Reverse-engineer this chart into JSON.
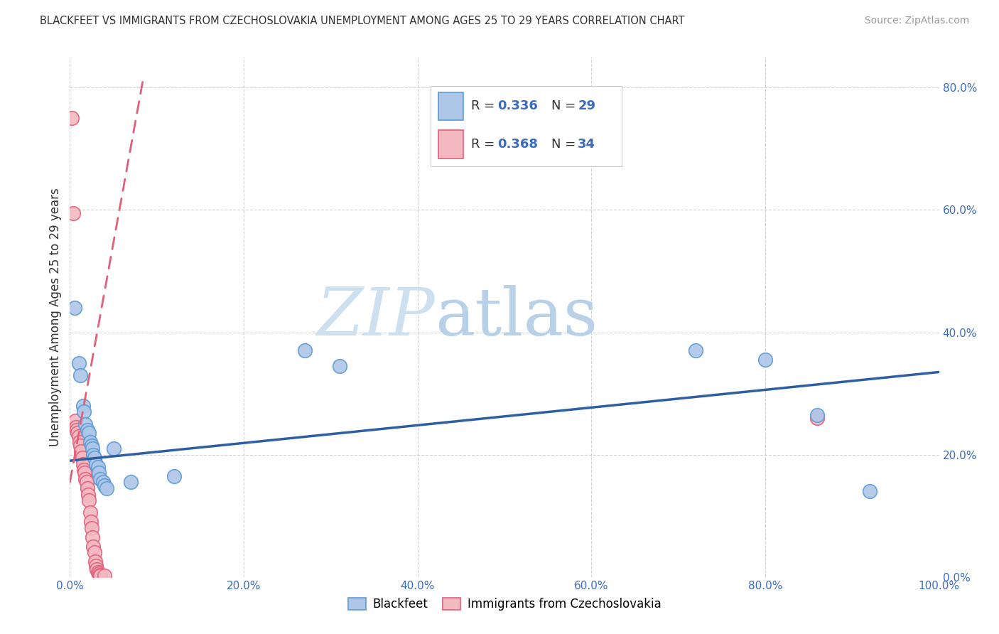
{
  "title": "BLACKFEET VS IMMIGRANTS FROM CZECHOSLOVAKIA UNEMPLOYMENT AMONG AGES 25 TO 29 YEARS CORRELATION CHART",
  "source": "Source: ZipAtlas.com",
  "ylabel": "Unemployment Among Ages 25 to 29 years",
  "xlim": [
    0,
    1.0
  ],
  "ylim": [
    0,
    0.85
  ],
  "xticks": [
    0.0,
    0.2,
    0.4,
    0.6,
    0.8,
    1.0
  ],
  "xticklabels": [
    "0.0%",
    "20.0%",
    "40.0%",
    "60.0%",
    "80.0%",
    "100.0%"
  ],
  "yticks": [
    0.0,
    0.2,
    0.4,
    0.6,
    0.8
  ],
  "yticklabels_right": [
    "0.0%",
    "20.0%",
    "40.0%",
    "60.0%",
    "80.0%"
  ],
  "blackfeet_color": "#aec6e8",
  "blackfeet_edge": "#5b9bd5",
  "czecho_color": "#f4b8c1",
  "czecho_edge": "#e0607a",
  "trendline_blue": "#2e5fa3",
  "trendline_pink": "#e0607a",
  "watermark_zip_color": "#cde0f0",
  "watermark_atlas_color": "#b8d0e8",
  "blackfeet_points": [
    [
      0.005,
      0.44
    ],
    [
      0.01,
      0.35
    ],
    [
      0.012,
      0.33
    ],
    [
      0.015,
      0.28
    ],
    [
      0.016,
      0.27
    ],
    [
      0.018,
      0.25
    ],
    [
      0.02,
      0.24
    ],
    [
      0.022,
      0.235
    ],
    [
      0.023,
      0.22
    ],
    [
      0.025,
      0.215
    ],
    [
      0.026,
      0.21
    ],
    [
      0.027,
      0.2
    ],
    [
      0.028,
      0.195
    ],
    [
      0.03,
      0.185
    ],
    [
      0.032,
      0.18
    ],
    [
      0.033,
      0.17
    ],
    [
      0.035,
      0.16
    ],
    [
      0.038,
      0.155
    ],
    [
      0.04,
      0.15
    ],
    [
      0.042,
      0.145
    ],
    [
      0.05,
      0.21
    ],
    [
      0.07,
      0.155
    ],
    [
      0.12,
      0.165
    ],
    [
      0.27,
      0.37
    ],
    [
      0.31,
      0.345
    ],
    [
      0.72,
      0.37
    ],
    [
      0.8,
      0.355
    ],
    [
      0.86,
      0.265
    ],
    [
      0.92,
      0.14
    ]
  ],
  "czecho_points": [
    [
      0.002,
      0.75
    ],
    [
      0.004,
      0.595
    ],
    [
      0.006,
      0.255
    ],
    [
      0.007,
      0.245
    ],
    [
      0.008,
      0.24
    ],
    [
      0.009,
      0.235
    ],
    [
      0.01,
      0.23
    ],
    [
      0.011,
      0.22
    ],
    [
      0.012,
      0.215
    ],
    [
      0.013,
      0.205
    ],
    [
      0.014,
      0.195
    ],
    [
      0.015,
      0.185
    ],
    [
      0.016,
      0.175
    ],
    [
      0.017,
      0.17
    ],
    [
      0.018,
      0.16
    ],
    [
      0.019,
      0.155
    ],
    [
      0.02,
      0.145
    ],
    [
      0.021,
      0.135
    ],
    [
      0.022,
      0.125
    ],
    [
      0.023,
      0.105
    ],
    [
      0.024,
      0.09
    ],
    [
      0.025,
      0.08
    ],
    [
      0.026,
      0.065
    ],
    [
      0.027,
      0.05
    ],
    [
      0.028,
      0.04
    ],
    [
      0.029,
      0.025
    ],
    [
      0.03,
      0.018
    ],
    [
      0.031,
      0.012
    ],
    [
      0.032,
      0.008
    ],
    [
      0.033,
      0.005
    ],
    [
      0.034,
      0.003
    ],
    [
      0.035,
      0.002
    ],
    [
      0.04,
      0.002
    ],
    [
      0.86,
      0.26
    ]
  ],
  "bf_trendline_x": [
    0.0,
    1.0
  ],
  "bf_trendline_y": [
    0.19,
    0.335
  ],
  "cz_trendline_x": [
    0.0,
    0.085
  ],
  "cz_trendline_y": [
    0.155,
    0.82
  ]
}
